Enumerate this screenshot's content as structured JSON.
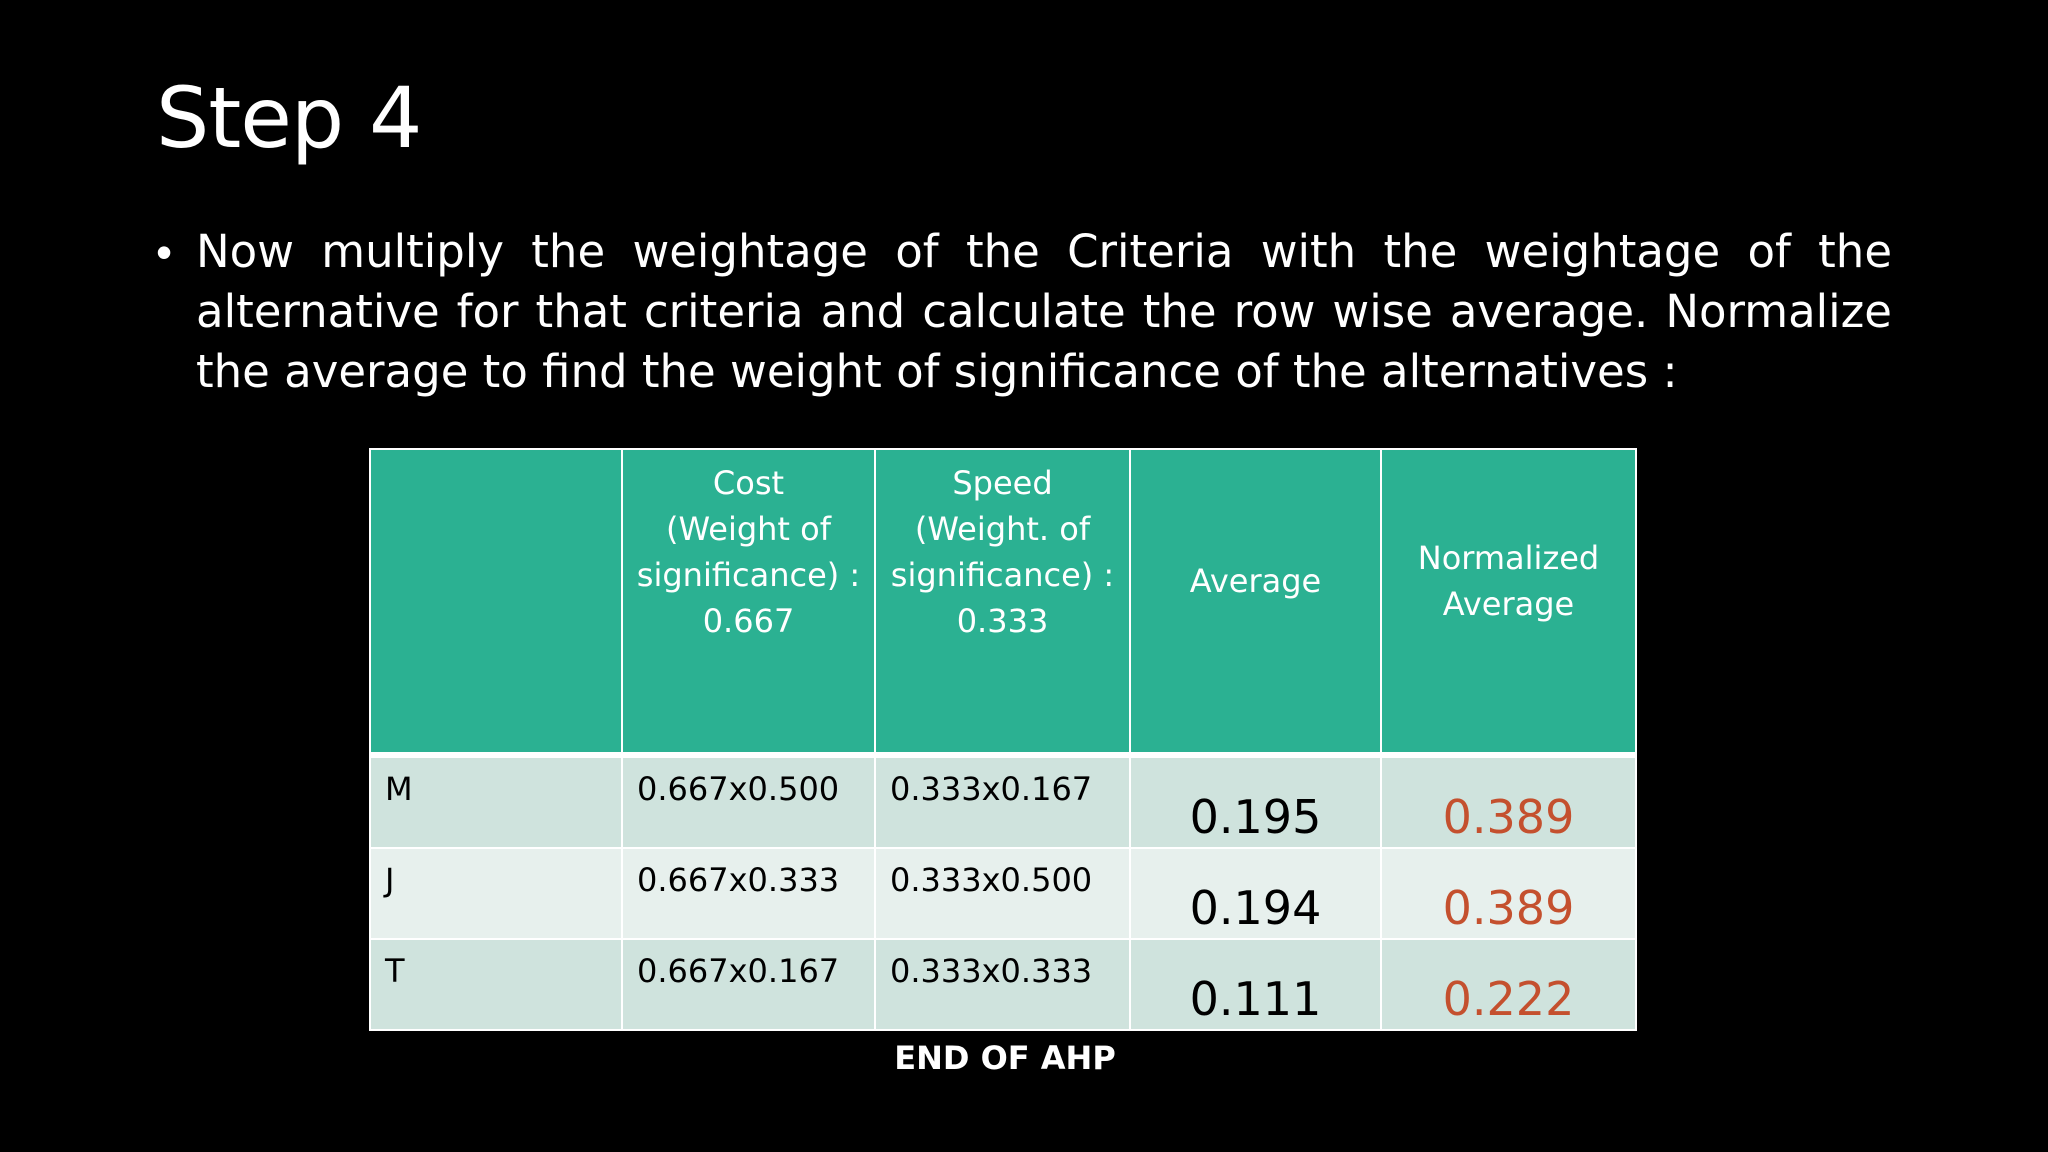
{
  "slide": {
    "title": "Step 4",
    "bullet": "Now multiply the weightage of the Criteria with the weightage of the alternative for that criteria and calculate the row wise average. Normalize the average to find the weight of significance of the alternatives :",
    "footer": "END OF AHP"
  },
  "table": {
    "headers": [
      {
        "lines": []
      },
      {
        "lines": [
          "Cost",
          "(Weight of",
          "significance) :",
          "0.667"
        ]
      },
      {
        "lines": [
          "Speed",
          "(Weight. of",
          "significance) :",
          "0.333"
        ]
      },
      {
        "lines": [
          "Average"
        ]
      },
      {
        "lines": [
          "Normalized",
          "Average"
        ]
      }
    ],
    "rows": [
      {
        "label": "M",
        "cost": "0.667x0.500",
        "speed": "0.333x0.167",
        "average": "0.195",
        "normalized": "0.389"
      },
      {
        "label": "J",
        "cost": "0.667x0.333",
        "speed": "0.333x0.500",
        "average": "0.194",
        "normalized": "0.389"
      },
      {
        "label": "T",
        "cost": "0.667x0.167",
        "speed": "0.333x0.333",
        "average": "0.111",
        "normalized": "0.222"
      }
    ]
  },
  "colors": {
    "background": "#000000",
    "header_fill": "#2bb192",
    "row_odd": "#cfe3dd",
    "row_even": "#e7f0ed",
    "normalized_text": "#c4502e"
  }
}
